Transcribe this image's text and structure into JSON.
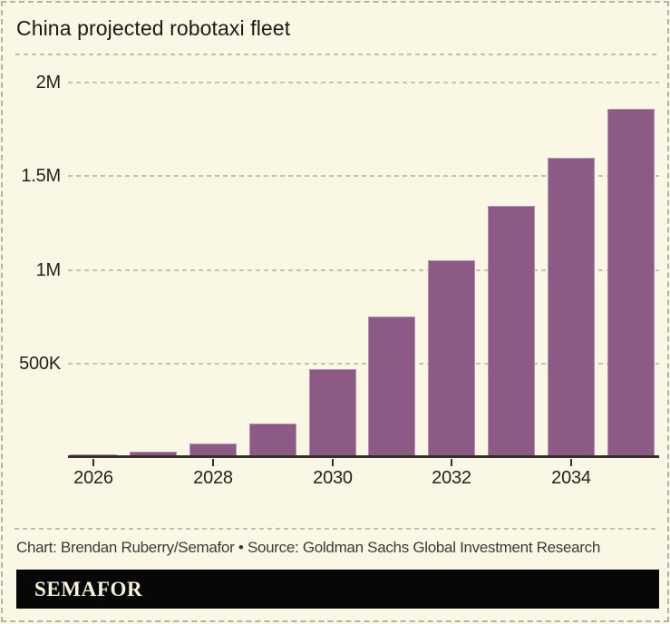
{
  "header": {
    "title": "China projected robotaxi fleet"
  },
  "footer": {
    "credit": "Chart: Brendan Ruberry/Semafor • Source: Goldman Sachs Global Investment Research",
    "logo_text": "SEMAFOR"
  },
  "colors": {
    "background": "#faf7e4",
    "bar_fill": "#8d5a86",
    "bar_stroke": "#b78fae",
    "axis": "#32322a",
    "gridline": "#c3c3b7",
    "title_text": "#1b1b16",
    "credit_text": "#3c3c35",
    "logo_background": "#070707",
    "logo_text": "#f6f2dc"
  },
  "chart_data": {
    "type": "bar",
    "title": "China projected robotaxi fleet",
    "categories": [
      2026,
      2027,
      2028,
      2029,
      2030,
      2031,
      2032,
      2033,
      2034,
      2035
    ],
    "values": [
      15000,
      30000,
      75000,
      180000,
      470000,
      750000,
      1050000,
      1340000,
      1600000,
      1860000
    ],
    "xlabel": "",
    "ylabel": "",
    "ylim": [
      0,
      2000000
    ],
    "grid": "horizontal-dashed",
    "legend": false,
    "yticks": [
      {
        "label": "2M",
        "value": 2000000
      },
      {
        "label": "1.5M",
        "value": 1500000
      },
      {
        "label": "1M",
        "value": 1000000
      },
      {
        "label": "500K",
        "value": 500000
      }
    ],
    "xticks": [
      {
        "label": "2026",
        "category_index": 0
      },
      {
        "label": "2028",
        "category_index": 2
      },
      {
        "label": "2030",
        "category_index": 4
      },
      {
        "label": "2032",
        "category_index": 6
      },
      {
        "label": "2034",
        "category_index": 8
      }
    ]
  }
}
